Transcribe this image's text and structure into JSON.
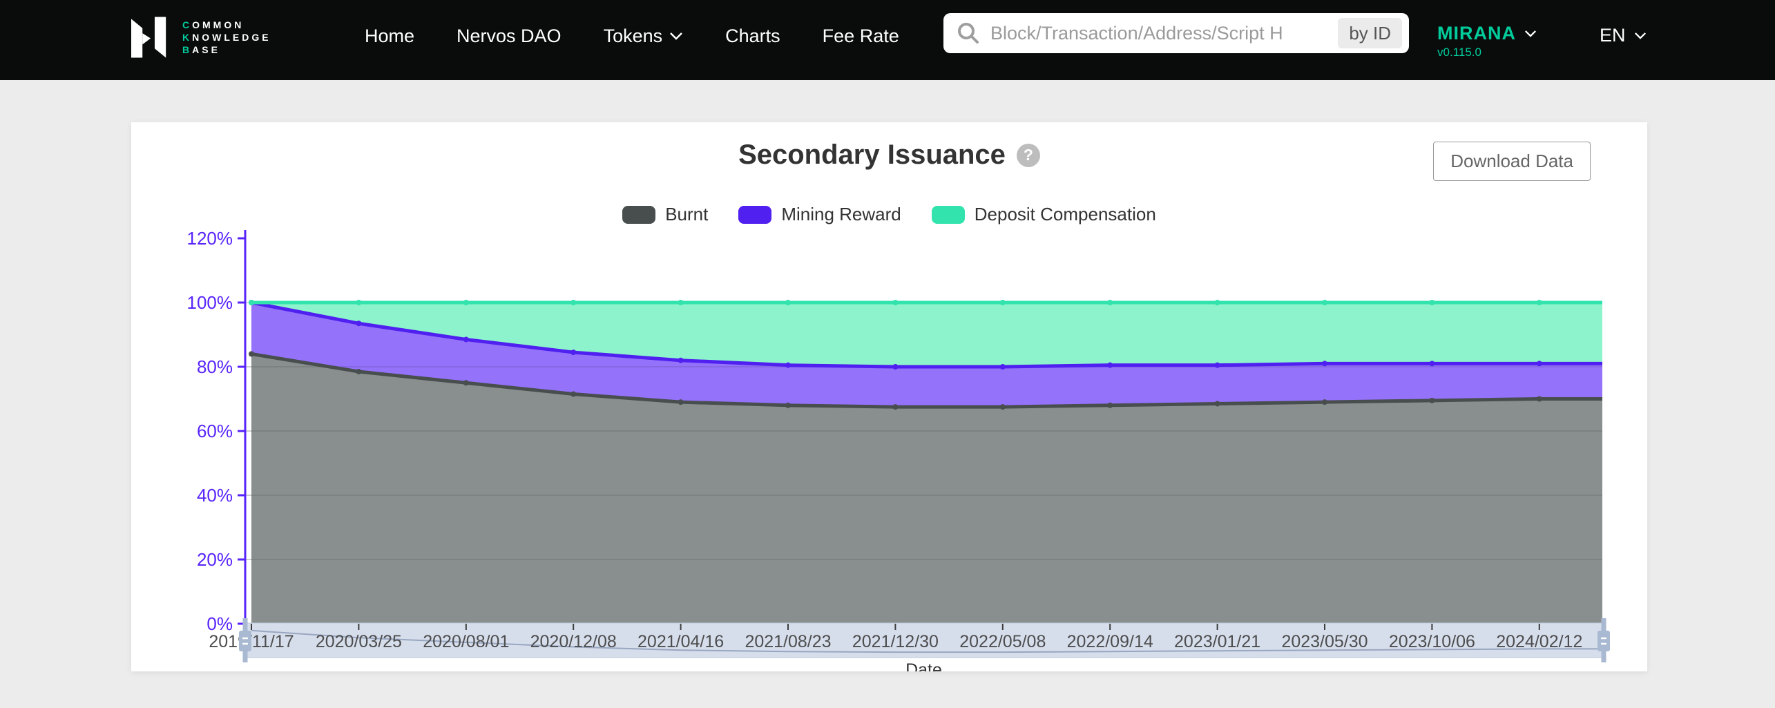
{
  "navbar": {
    "logo": {
      "l1f": "C",
      "l1r": "OMMON",
      "l2f": "K",
      "l2r": "NOWLEDGE",
      "l3f": "B",
      "l3r": "ASE"
    },
    "links": [
      {
        "label": "Home"
      },
      {
        "label": "Nervos DAO"
      },
      {
        "label": "Tokens",
        "has_dropdown": true
      },
      {
        "label": "Charts"
      },
      {
        "label": "Fee Rate"
      }
    ],
    "search": {
      "placeholder": "Block/Transaction/Address/Script H",
      "by_id_label": "by ID"
    },
    "network": {
      "name": "MIRANA",
      "version": "v0.115.0"
    },
    "language": "EN",
    "accent_green": "#00cc9b"
  },
  "panel": {
    "title": "Secondary Issuance",
    "help_glyph": "?",
    "download_label": "Download Data"
  },
  "chart_data": {
    "type": "area",
    "stacked": true,
    "percent_stacked": true,
    "title": "Secondary Issuance",
    "xlabel": "Date",
    "ylabel": "",
    "unit": "%",
    "ylim": [
      0,
      120
    ],
    "yticks": [
      0,
      20,
      40,
      60,
      80,
      100,
      120
    ],
    "grid": true,
    "legend_position": "top",
    "axis_color": "#5824FB",
    "x": [
      "2019/11/17",
      "2020/03/25",
      "2020/08/01",
      "2020/12/08",
      "2021/04/16",
      "2021/08/23",
      "2021/12/30",
      "2022/05/08",
      "2022/09/14",
      "2023/01/21",
      "2023/05/30",
      "2023/10/06",
      "2024/02/12"
    ],
    "series": [
      {
        "name": "Burnt",
        "color": "#484E4E",
        "fill": "#7F8586",
        "values": [
          84,
          78.5,
          75,
          71.5,
          69,
          68,
          67.5,
          67.5,
          68,
          68.5,
          69,
          69.5,
          70
        ]
      },
      {
        "name": "Mining Reward",
        "color": "#4F20F0",
        "fill": "#8B66FA",
        "values": [
          16,
          15,
          13.5,
          13,
          13,
          12.5,
          12.5,
          12.5,
          12.5,
          12,
          12,
          11.5,
          11
        ]
      },
      {
        "name": "Deposit Compensation",
        "color": "#32E3AE",
        "fill": "#83F2C8",
        "values": [
          0,
          6.5,
          11.5,
          15.5,
          18,
          19.5,
          20,
          20,
          19.5,
          19.5,
          19,
          19,
          19
        ]
      }
    ],
    "datazoom_slider": {
      "visible": true,
      "range_start_label": "2019/11/17",
      "range_end_label": "2024/02/12"
    }
  }
}
